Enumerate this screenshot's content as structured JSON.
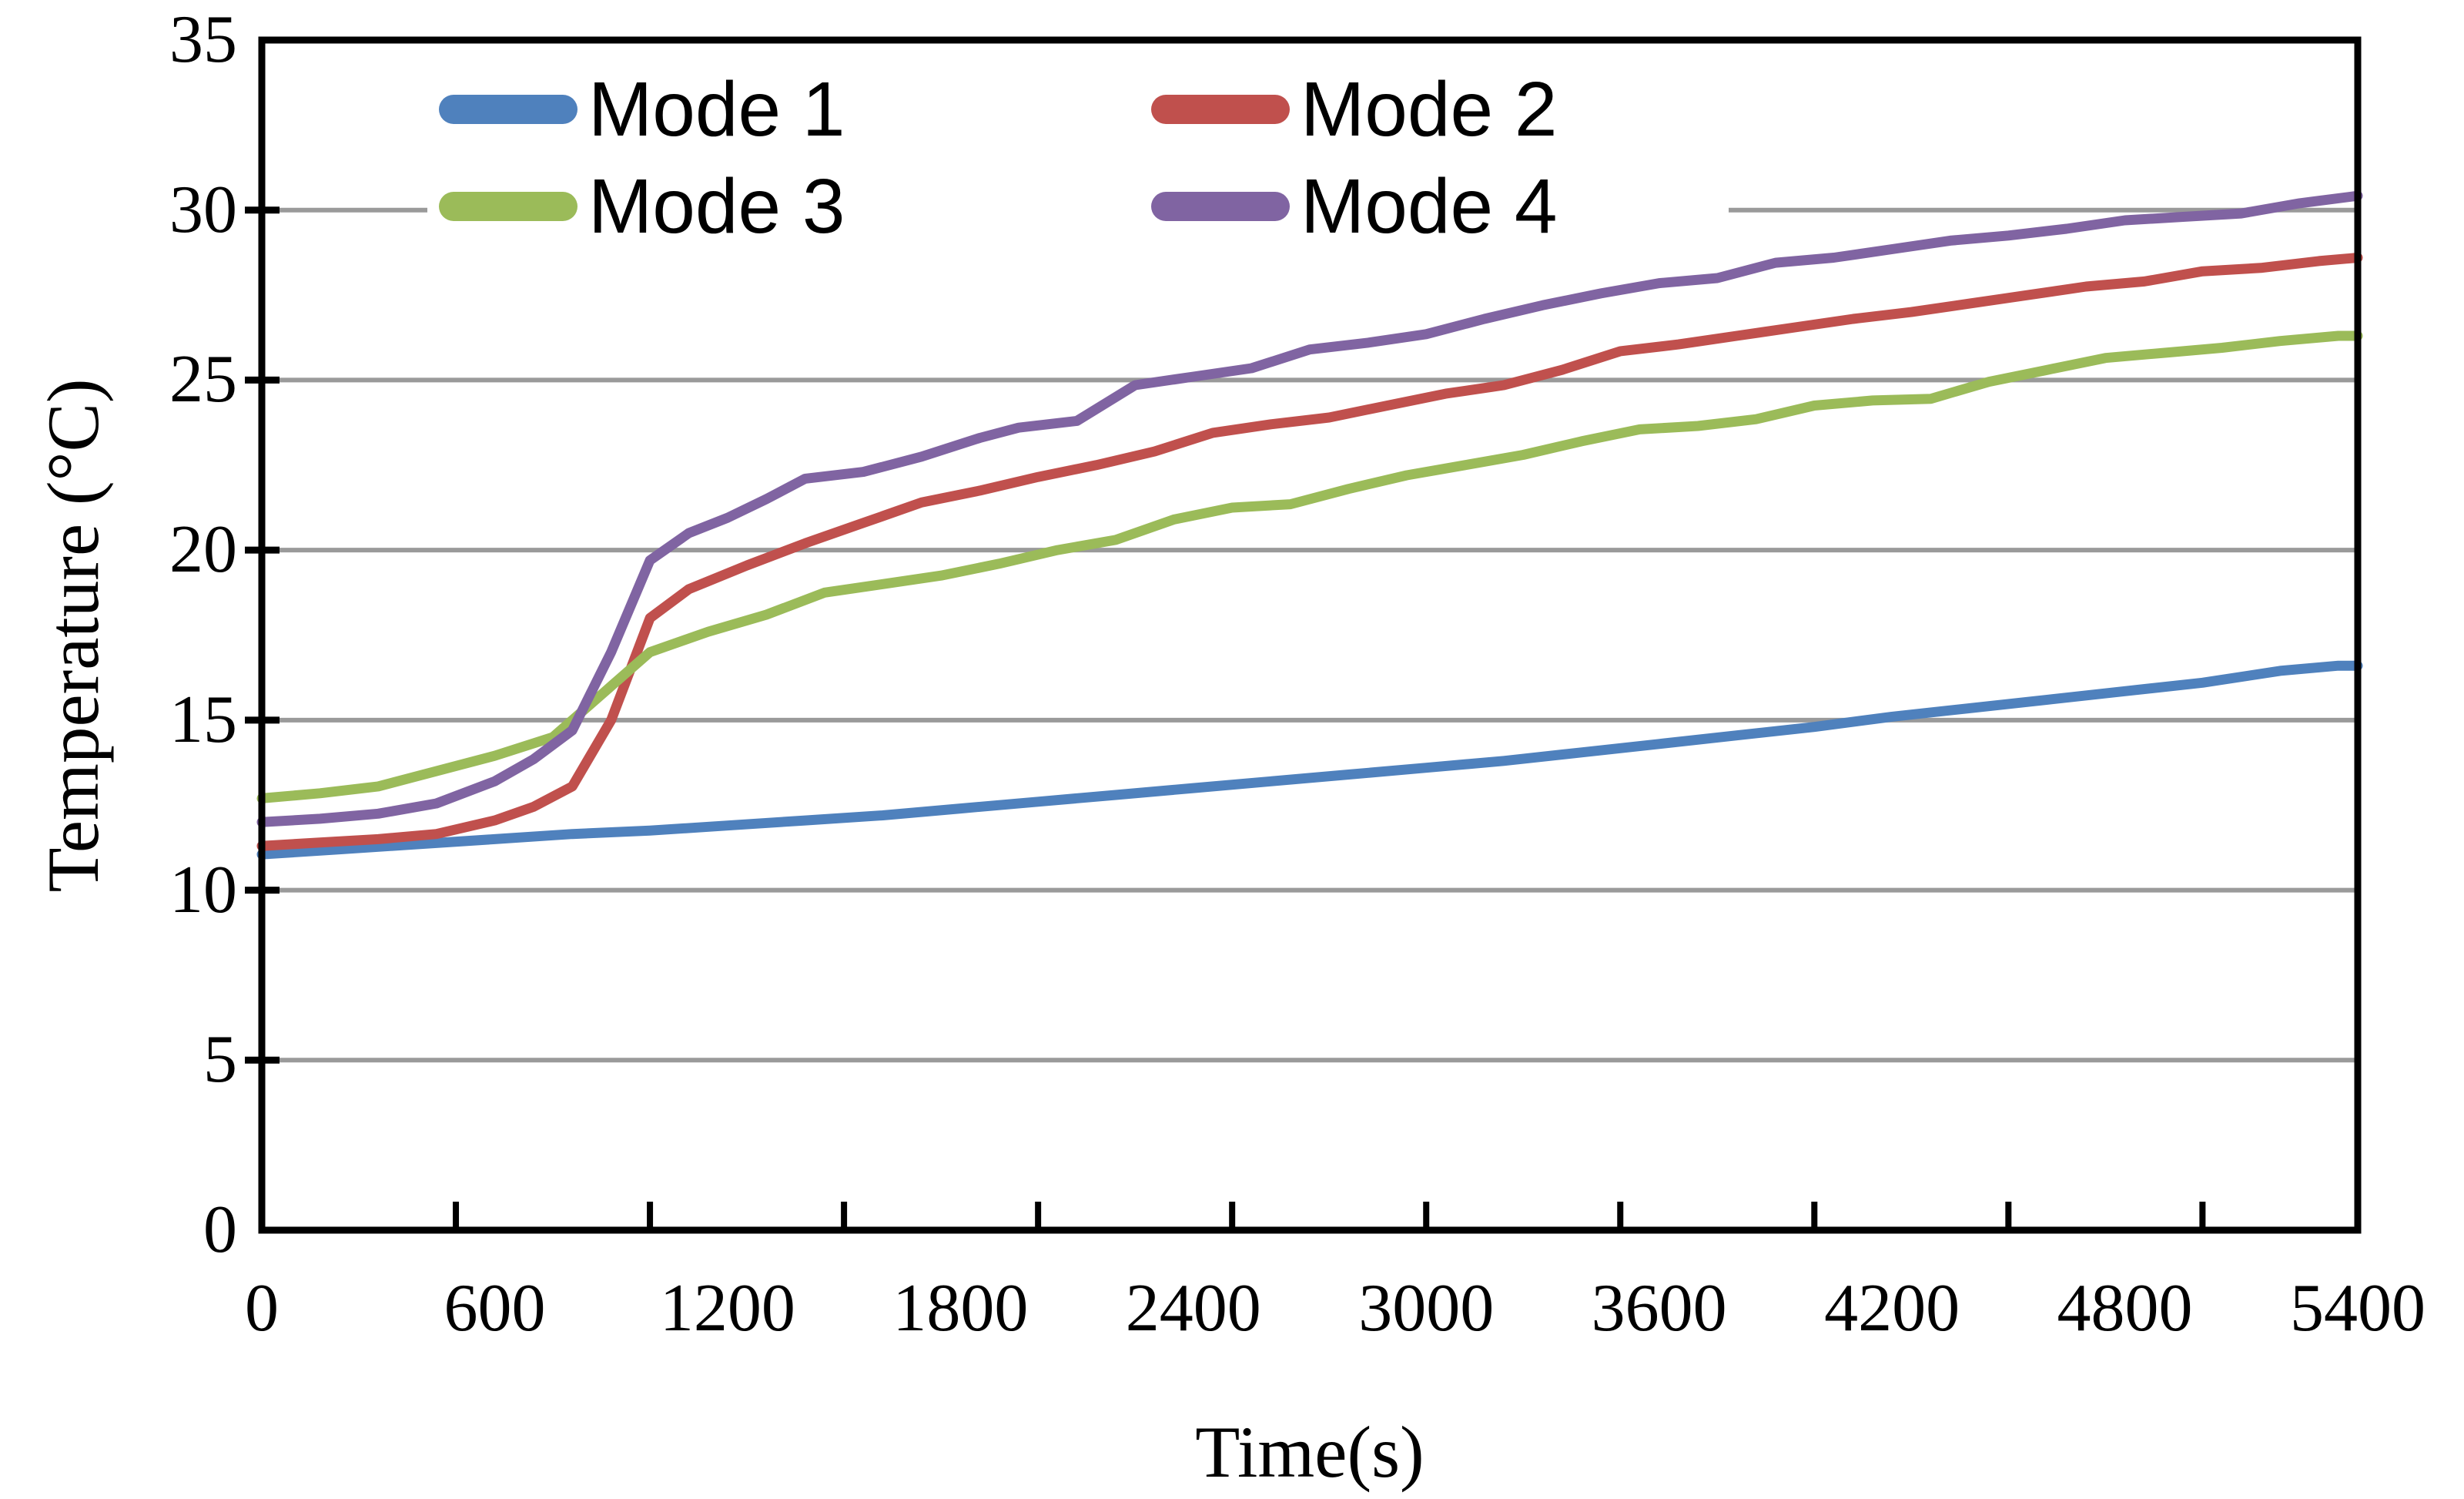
{
  "chart_data": {
    "type": "line",
    "title": "",
    "xlabel": "Time(s)",
    "ylabel": "Temperature (°C)",
    "xlim": [
      0,
      5400
    ],
    "ylim": [
      0,
      35
    ],
    "x_tick_labels": [
      "0",
      "600",
      "1200",
      "1800",
      "2400",
      "3000",
      "3600",
      "4200",
      "4800",
      "5400"
    ],
    "x_tick_label_interval_s": 600,
    "x_minor_tick_interval_s": 500,
    "y_tick_labels": [
      "0",
      "5",
      "10",
      "15",
      "20",
      "25",
      "30",
      "35"
    ],
    "y_tick_interval": 5,
    "grid": "horizontal-major",
    "legend_position": "top-left-inside-two-columns",
    "series": [
      {
        "name": "Mode 1",
        "color": "#4F81BD",
        "points": [
          [
            0,
            11.05
          ],
          [
            200,
            11.2
          ],
          [
            400,
            11.35
          ],
          [
            600,
            11.5
          ],
          [
            800,
            11.65
          ],
          [
            1000,
            11.75
          ],
          [
            1200,
            11.9
          ],
          [
            1400,
            12.05
          ],
          [
            1600,
            12.2
          ],
          [
            1800,
            12.4
          ],
          [
            2000,
            12.6
          ],
          [
            2200,
            12.8
          ],
          [
            2400,
            13.0
          ],
          [
            2600,
            13.2
          ],
          [
            2800,
            13.4
          ],
          [
            3000,
            13.6
          ],
          [
            3200,
            13.8
          ],
          [
            3400,
            14.05
          ],
          [
            3600,
            14.3
          ],
          [
            3800,
            14.55
          ],
          [
            4000,
            14.8
          ],
          [
            4200,
            15.1
          ],
          [
            4400,
            15.35
          ],
          [
            4600,
            15.6
          ],
          [
            4800,
            15.85
          ],
          [
            5000,
            16.1
          ],
          [
            5200,
            16.45
          ],
          [
            5350,
            16.6
          ],
          [
            5400,
            16.6
          ]
        ]
      },
      {
        "name": "Mode 2",
        "color": "#C0504D",
        "points": [
          [
            0,
            11.3
          ],
          [
            150,
            11.4
          ],
          [
            300,
            11.5
          ],
          [
            450,
            11.65
          ],
          [
            600,
            12.05
          ],
          [
            700,
            12.45
          ],
          [
            800,
            13.05
          ],
          [
            900,
            15.0
          ],
          [
            1000,
            18.0
          ],
          [
            1100,
            18.85
          ],
          [
            1250,
            19.55
          ],
          [
            1400,
            20.2
          ],
          [
            1550,
            20.8
          ],
          [
            1700,
            21.4
          ],
          [
            1850,
            21.75
          ],
          [
            2000,
            22.15
          ],
          [
            2150,
            22.5
          ],
          [
            2300,
            22.9
          ],
          [
            2450,
            23.45
          ],
          [
            2600,
            23.7
          ],
          [
            2750,
            23.9
          ],
          [
            2900,
            24.25
          ],
          [
            3050,
            24.6
          ],
          [
            3200,
            24.85
          ],
          [
            3350,
            25.3
          ],
          [
            3500,
            25.85
          ],
          [
            3650,
            26.05
          ],
          [
            3800,
            26.3
          ],
          [
            3950,
            26.55
          ],
          [
            4100,
            26.8
          ],
          [
            4250,
            27.0
          ],
          [
            4400,
            27.25
          ],
          [
            4550,
            27.5
          ],
          [
            4700,
            27.75
          ],
          [
            4850,
            27.9
          ],
          [
            5000,
            28.2
          ],
          [
            5150,
            28.3
          ],
          [
            5300,
            28.5
          ],
          [
            5400,
            28.6
          ]
        ]
      },
      {
        "name": "Mode 3",
        "color": "#9BBB59",
        "points": [
          [
            0,
            12.7
          ],
          [
            150,
            12.85
          ],
          [
            300,
            13.05
          ],
          [
            450,
            13.5
          ],
          [
            600,
            13.95
          ],
          [
            750,
            14.5
          ],
          [
            900,
            16.0
          ],
          [
            1000,
            17.0
          ],
          [
            1150,
            17.6
          ],
          [
            1300,
            18.1
          ],
          [
            1450,
            18.75
          ],
          [
            1600,
            19.0
          ],
          [
            1750,
            19.25
          ],
          [
            1900,
            19.6
          ],
          [
            2050,
            20.0
          ],
          [
            2200,
            20.3
          ],
          [
            2350,
            20.9
          ],
          [
            2500,
            21.25
          ],
          [
            2650,
            21.35
          ],
          [
            2800,
            21.8
          ],
          [
            2950,
            22.2
          ],
          [
            3100,
            22.5
          ],
          [
            3250,
            22.8
          ],
          [
            3400,
            23.2
          ],
          [
            3550,
            23.55
          ],
          [
            3700,
            23.65
          ],
          [
            3850,
            23.85
          ],
          [
            4000,
            24.25
          ],
          [
            4150,
            24.4
          ],
          [
            4300,
            24.45
          ],
          [
            4450,
            24.95
          ],
          [
            4600,
            25.3
          ],
          [
            4750,
            25.65
          ],
          [
            4900,
            25.8
          ],
          [
            5050,
            25.95
          ],
          [
            5200,
            26.15
          ],
          [
            5350,
            26.3
          ],
          [
            5400,
            26.3
          ]
        ]
      },
      {
        "name": "Mode 4",
        "color": "#8064A2",
        "points": [
          [
            0,
            12.0
          ],
          [
            150,
            12.1
          ],
          [
            300,
            12.25
          ],
          [
            450,
            12.55
          ],
          [
            600,
            13.2
          ],
          [
            700,
            13.85
          ],
          [
            800,
            14.7
          ],
          [
            900,
            17.0
          ],
          [
            1000,
            19.7
          ],
          [
            1100,
            20.5
          ],
          [
            1200,
            20.95
          ],
          [
            1300,
            21.5
          ],
          [
            1400,
            22.1
          ],
          [
            1550,
            22.3
          ],
          [
            1700,
            22.75
          ],
          [
            1850,
            23.3
          ],
          [
            1950,
            23.6
          ],
          [
            2100,
            23.8
          ],
          [
            2250,
            24.85
          ],
          [
            2400,
            25.1
          ],
          [
            2550,
            25.35
          ],
          [
            2700,
            25.9
          ],
          [
            2850,
            26.1
          ],
          [
            3000,
            26.35
          ],
          [
            3150,
            26.8
          ],
          [
            3300,
            27.2
          ],
          [
            3450,
            27.55
          ],
          [
            3600,
            27.85
          ],
          [
            3750,
            28.0
          ],
          [
            3900,
            28.45
          ],
          [
            4050,
            28.6
          ],
          [
            4200,
            28.85
          ],
          [
            4350,
            29.1
          ],
          [
            4500,
            29.25
          ],
          [
            4650,
            29.45
          ],
          [
            4800,
            29.7
          ],
          [
            4950,
            29.8
          ],
          [
            5100,
            29.9
          ],
          [
            5250,
            30.2
          ],
          [
            5400,
            30.42
          ]
        ]
      }
    ]
  },
  "colors": {
    "background": "#FFFFFF",
    "gridline": "#9A9A9A",
    "axis": "#000000",
    "text": "#000000"
  }
}
